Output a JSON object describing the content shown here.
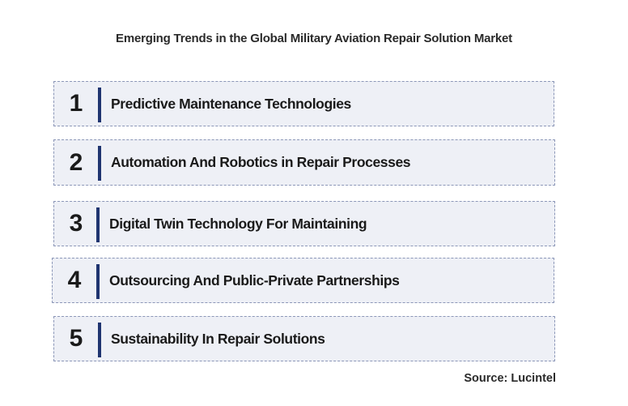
{
  "title": "Emerging Trends in the Global Military Aviation Repair Solution Market",
  "trends": [
    {
      "number": "1",
      "label": "Predictive Maintenance Technologies"
    },
    {
      "number": "2",
      "label": "Automation And Robotics in Repair Processes"
    },
    {
      "number": "3",
      "label": "Digital Twin Technology For Maintaining"
    },
    {
      "number": "4",
      "label": "Outsourcing And Public-Private Partnerships"
    },
    {
      "number": "5",
      "label": "Sustainability In Repair Solutions"
    }
  ],
  "source": "Source: Lucintel",
  "colors": {
    "box_fill": "#eef0f6",
    "box_border": "#8c97b8",
    "accent_bar": "#1f3470"
  }
}
